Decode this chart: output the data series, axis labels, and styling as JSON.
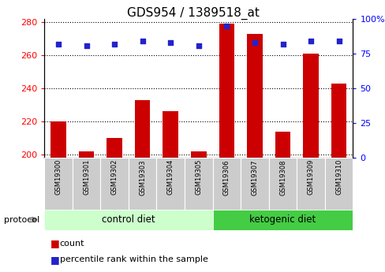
{
  "title": "GDS954 / 1389518_at",
  "samples": [
    "GSM19300",
    "GSM19301",
    "GSM19302",
    "GSM19303",
    "GSM19304",
    "GSM19305",
    "GSM19306",
    "GSM19307",
    "GSM19308",
    "GSM19309",
    "GSM19310"
  ],
  "counts": [
    220,
    202,
    210,
    233,
    226,
    202,
    279,
    273,
    214,
    261,
    243
  ],
  "percentile_ranks": [
    82,
    81,
    82,
    84,
    83,
    81,
    95,
    83,
    82,
    84,
    84
  ],
  "group_labels": [
    "control diet",
    "ketogenic diet"
  ],
  "group_split": 6,
  "ylim_left": [
    198,
    282
  ],
  "ylim_right": [
    0,
    100
  ],
  "yticks_left": [
    200,
    220,
    240,
    260,
    280
  ],
  "yticks_right": [
    0,
    25,
    50,
    75,
    100
  ],
  "ytick_right_labels": [
    "0",
    "25",
    "50",
    "75",
    "100%"
  ],
  "bar_color": "#cc0000",
  "dot_color": "#2222cc",
  "bar_width": 0.55,
  "control_bg": "#ccffcc",
  "ketogenic_bg": "#44cc44",
  "tick_label_bg": "#cccccc",
  "title_fontsize": 11,
  "tick_fontsize": 8,
  "sample_fontsize": 6,
  "group_fontsize": 8.5,
  "legend_fontsize": 8
}
